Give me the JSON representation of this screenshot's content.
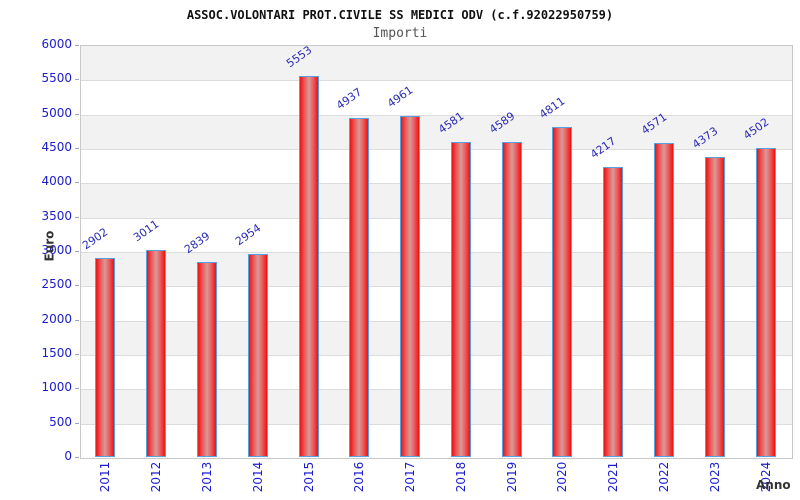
{
  "chart_data": {
    "type": "bar",
    "title": "ASSOC.VOLONTARI PROT.CIVILE SS MEDICI ODV (c.f.92022950759)",
    "subtitle": "Importi",
    "xlabel": "Anno",
    "ylabel": "Euro",
    "categories": [
      "2011",
      "2012",
      "2013",
      "2014",
      "2015",
      "2016",
      "2017",
      "2018",
      "2019",
      "2020",
      "2021",
      "2022",
      "2023",
      "2024"
    ],
    "values": [
      2902,
      3011,
      2839,
      2954,
      5553,
      4937,
      4961,
      4581,
      4589,
      4811,
      4217,
      4571,
      4373,
      4502
    ],
    "ylim": [
      0,
      6000
    ],
    "ytick_step": 500,
    "ytick_labels": [
      "6000",
      "5500",
      "5000",
      "4500",
      "4000",
      "3500",
      "3000",
      "2500",
      "2000",
      "1500",
      "1000",
      "500",
      "0"
    ],
    "legend": "none",
    "grid": "horizontal-bands",
    "colors": {
      "title_text": "#111111",
      "subtitle_text": "#555555",
      "axis_tick_text": "#1c1ccd",
      "value_label_text": "#2a2ab5",
      "axis_title_text": "#333333",
      "band_gray": "#f2f2f2",
      "band_white": "#ffffff",
      "gridline": "#dcdcdc",
      "plot_border": "#c9c9c9",
      "bar_border": "#58a0e0",
      "bar_edge_red": "#e81414",
      "bar_mid_red": "#ee5050",
      "bar_center_light": "#d89a9a",
      "tick_mark": "#9aa3c8"
    }
  }
}
